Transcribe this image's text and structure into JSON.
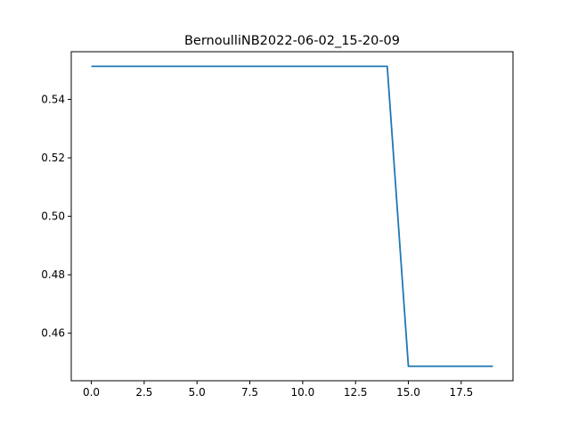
{
  "chart_data": {
    "type": "line",
    "title": "BernoulliNB2022-06-02_15-20-09",
    "xlabel": "",
    "ylabel": "",
    "xlim": [
      -0.95,
      19.95
    ],
    "ylim": [
      0.44375,
      0.5563
    ],
    "grid": false,
    "x_ticks": [
      0.0,
      2.5,
      5.0,
      7.5,
      10.0,
      12.5,
      15.0,
      17.5
    ],
    "x_tick_labels": [
      "0.0",
      "2.5",
      "5.0",
      "7.5",
      "10.0",
      "12.5",
      "15.0",
      "17.5"
    ],
    "y_ticks": [
      0.46,
      0.48,
      0.5,
      0.52,
      0.54
    ],
    "y_tick_labels": [
      "0.46",
      "0.48",
      "0.50",
      "0.52",
      "0.54"
    ],
    "series": [
      {
        "color": "#1f77b4",
        "x": [
          0,
          1,
          2,
          3,
          4,
          5,
          6,
          7,
          8,
          9,
          10,
          11,
          12,
          13,
          14,
          15,
          16,
          17,
          18,
          19
        ],
        "y": [
          0.5513,
          0.5513,
          0.5513,
          0.5513,
          0.5513,
          0.5513,
          0.5513,
          0.5513,
          0.5513,
          0.5513,
          0.5513,
          0.5513,
          0.5513,
          0.5513,
          0.5513,
          0.4487,
          0.4487,
          0.4487,
          0.4487,
          0.4487
        ]
      }
    ]
  }
}
